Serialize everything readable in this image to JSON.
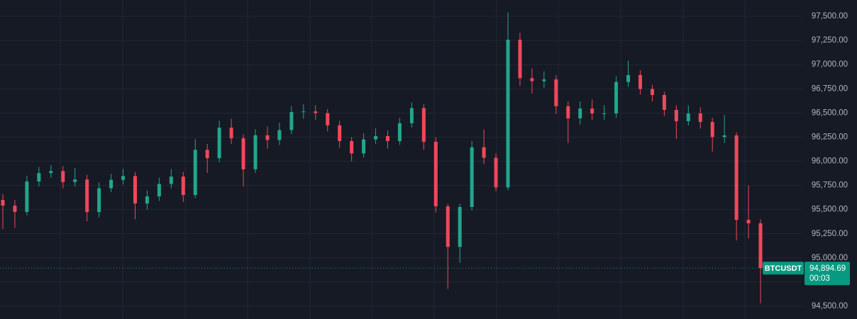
{
  "chart_data": {
    "type": "candlestick",
    "up_color": "#22a68c",
    "down_color": "#f0485a",
    "grid": true,
    "ylim": [
      94368,
      97669
    ],
    "yticks": [
      {
        "value": 94500,
        "label": "94,500.00"
      },
      {
        "value": 94750,
        "label": "94,750.00"
      },
      {
        "value": 95000,
        "label": "95,000.00"
      },
      {
        "value": 95250,
        "label": "95,250.00"
      },
      {
        "value": 95500,
        "label": "95,500.00"
      },
      {
        "value": 95750,
        "label": "95,750.00"
      },
      {
        "value": 96000,
        "label": "96,000.00"
      },
      {
        "value": 96250,
        "label": "96,250.00"
      },
      {
        "value": 96500,
        "label": "96,500.00"
      },
      {
        "value": 96750,
        "label": "96,750.00"
      },
      {
        "value": 97000,
        "label": "97,000.00"
      },
      {
        "value": 97250,
        "label": "97,250.00"
      },
      {
        "value": 97500,
        "label": "97,500.00"
      }
    ],
    "open": [
      95600,
      95541,
      95476,
      95791,
      95878,
      95899,
      95786,
      95812,
      95475,
      95721,
      95808,
      95847,
      95563,
      95637,
      95766,
      95842,
      95651,
      96119,
      96032,
      96348,
      96238,
      95917,
      96269,
      96220,
      96323,
      96510,
      96516,
      96498,
      96372,
      96209,
      96081,
      96226,
      96261,
      96209,
      96394,
      96550,
      96202,
      95534,
      95114,
      95527,
      96145,
      96036,
      95730,
      97258,
      96860,
      96829,
      96847,
      96570,
      96444,
      96546,
      96495,
      96495,
      96820,
      96892,
      96748,
      96686,
      96532,
      96415,
      96495,
      96407,
      96251,
      96268,
      95394,
      95358
    ],
    "high": [
      95660,
      95600,
      95850,
      95940,
      95960,
      95950,
      95930,
      95860,
      95780,
      95870,
      95920,
      95890,
      95700,
      95830,
      95920,
      95890,
      96230,
      96180,
      96420,
      96440,
      96280,
      96330,
      96360,
      96400,
      96570,
      96590,
      96580,
      96540,
      96420,
      96250,
      96290,
      96340,
      96320,
      96450,
      96610,
      96590,
      96250,
      95560,
      95560,
      96210,
      96330,
      96080,
      97540,
      97330,
      96960,
      96930,
      96890,
      96620,
      96620,
      96640,
      96580,
      96880,
      97040,
      96940,
      96790,
      96720,
      96580,
      96580,
      96560,
      96450,
      96480,
      96300,
      95750,
      95400
    ],
    "low": [
      95300,
      95310,
      95440,
      95740,
      95830,
      95720,
      95740,
      95380,
      95420,
      95680,
      95760,
      95400,
      95500,
      95590,
      95720,
      95580,
      95620,
      95880,
      95990,
      96180,
      95740,
      95880,
      96130,
      96170,
      96280,
      96440,
      96430,
      96310,
      96140,
      96000,
      96040,
      96180,
      96130,
      96170,
      96350,
      96120,
      95470,
      94680,
      94950,
      95490,
      95970,
      95690,
      95700,
      96780,
      96700,
      96760,
      96490,
      96190,
      96380,
      96430,
      96430,
      96450,
      96770,
      96690,
      96620,
      96470,
      96230,
      96370,
      96340,
      96100,
      96190,
      95180,
      95200,
      94530
    ],
    "close": [
      95541,
      95476,
      95791,
      95878,
      95899,
      95786,
      95812,
      95475,
      95721,
      95808,
      95847,
      95563,
      95637,
      95766,
      95842,
      95651,
      96119,
      96032,
      96348,
      96238,
      95917,
      96269,
      96220,
      96323,
      96510,
      96516,
      96498,
      96372,
      96209,
      96081,
      96226,
      96261,
      96209,
      96394,
      96550,
      96202,
      95534,
      95114,
      95527,
      96145,
      96036,
      95730,
      97258,
      96860,
      96829,
      96847,
      96570,
      96444,
      96546,
      96495,
      96495,
      96820,
      96892,
      96748,
      96686,
      96532,
      96415,
      96495,
      96407,
      96251,
      96268,
      95394,
      95358,
      94894.69
    ],
    "price_line": {
      "value": 94894.69,
      "label": "94,894.69",
      "symbol": "BTCUSDT",
      "countdown": "00:03",
      "color": "#089981"
    }
  }
}
